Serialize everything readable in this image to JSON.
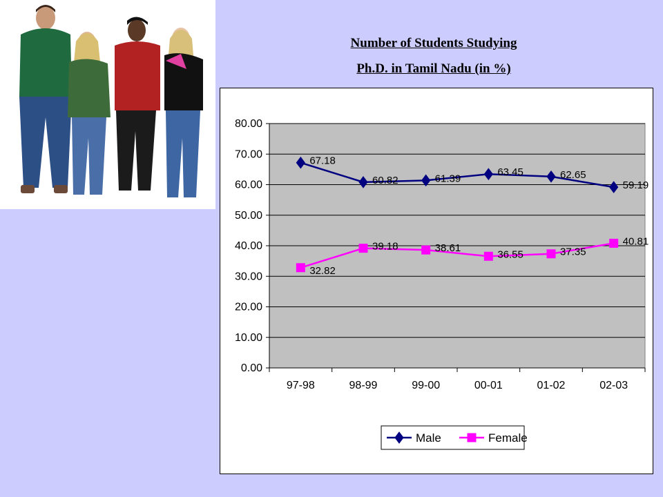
{
  "slide": {
    "title_line1": "Number of Students Studying",
    "title_line2": "Ph.D. in Tamil Nadu (in %)",
    "background": "#ccccff"
  },
  "chart_data": {
    "type": "line",
    "title": "",
    "xlabel": "",
    "ylabel": "",
    "categories": [
      "97-98",
      "98-99",
      "99-00",
      "00-01",
      "01-02",
      "02-03"
    ],
    "series": [
      {
        "name": "Male",
        "values": [
          67.18,
          60.82,
          61.39,
          63.45,
          62.65,
          59.19
        ],
        "color": "#000080",
        "marker": "diamond"
      },
      {
        "name": "Female",
        "values": [
          32.82,
          39.18,
          38.61,
          36.55,
          37.35,
          40.81
        ],
        "color": "#ff00ff",
        "marker": "square"
      }
    ],
    "ylim": [
      0,
      80
    ],
    "yticks": [
      "0.00",
      "10.00",
      "20.00",
      "30.00",
      "40.00",
      "50.00",
      "60.00",
      "70.00",
      "80.00"
    ],
    "grid": true,
    "plot_background": "#c0c0c0",
    "legend_position": "bottom"
  }
}
